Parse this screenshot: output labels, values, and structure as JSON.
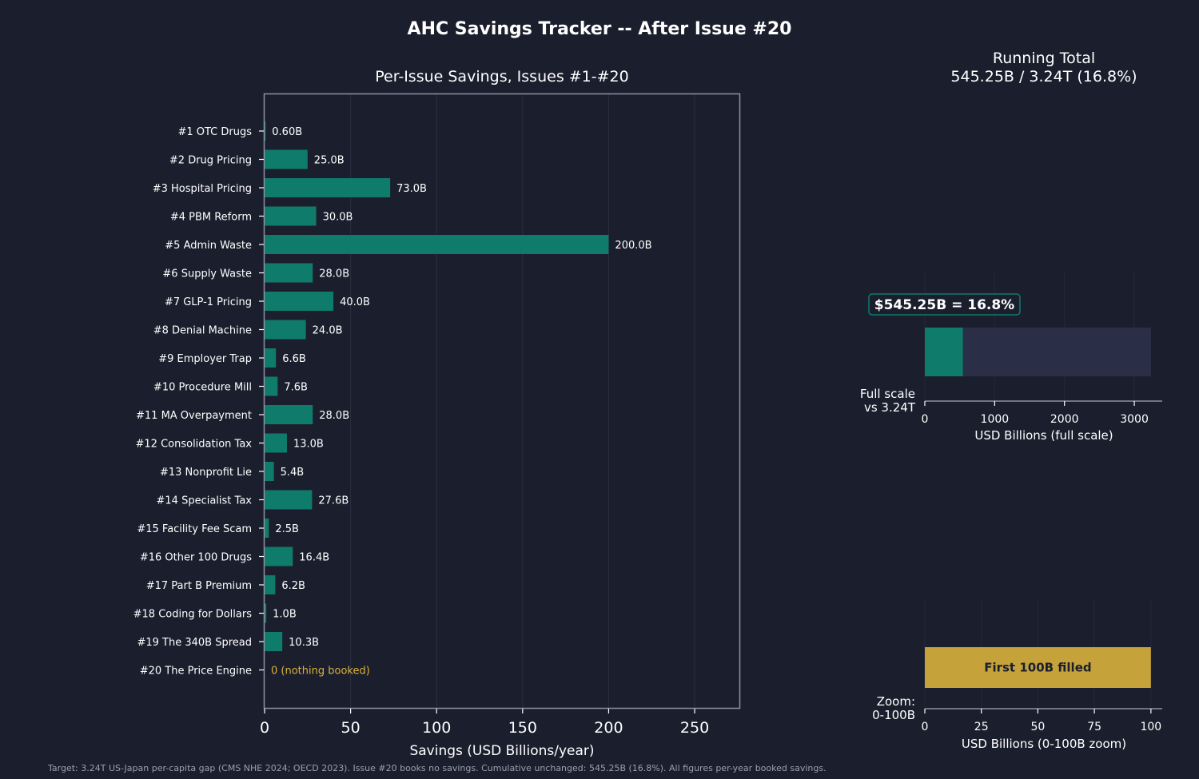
{
  "page": {
    "title": "AHC Savings Tracker -- After Issue #20",
    "footnote": "Target: 3.24T US-Japan per-capita gap (CMS NHE 2024; OECD 2023). Issue #20 books no savings. Cumulative unchanged: 545.25B (16.8%). All figures per-year booked savings."
  },
  "colors": {
    "background": "#1b1f2d",
    "bar": "#0f7b6a",
    "track": "#2a2e46",
    "gold": "#c5a23a",
    "zero_label": "#d9b13b"
  },
  "chart_data": [
    {
      "type": "bar",
      "orientation": "horizontal",
      "title": "Per-Issue Savings, Issues #1-#20",
      "xlabel": "Savings (USD Billions/year)",
      "xlim": [
        0,
        276
      ],
      "xticks": [
        0,
        50,
        100,
        150,
        200,
        250
      ],
      "categories": [
        "#1  OTC Drugs",
        "#2  Drug Pricing",
        "#3  Hospital Pricing",
        "#4  PBM Reform",
        "#5  Admin Waste",
        "#6  Supply Waste",
        "#7  GLP-1 Pricing",
        "#8  Denial Machine",
        "#9  Employer Trap",
        "#10  Procedure Mill",
        "#11  MA Overpayment",
        "#12  Consolidation Tax",
        "#13  Nonprofit Lie",
        "#14  Specialist Tax",
        "#15  Facility Fee Scam",
        "#16  Other 100 Drugs",
        "#17  Part B Premium",
        "#18  Coding for Dollars",
        "#19  The 340B Spread",
        "#20  The Price Engine"
      ],
      "values": [
        0.6,
        25.0,
        73.0,
        30.0,
        200.0,
        28.0,
        40.0,
        24.0,
        6.6,
        7.6,
        28.0,
        13.0,
        5.4,
        27.6,
        2.5,
        16.4,
        6.2,
        1.0,
        10.3,
        0
      ],
      "value_labels": [
        "0.60B",
        "25.0B",
        "73.0B",
        "30.0B",
        "200.0B",
        "28.0B",
        "40.0B",
        "24.0B",
        "6.6B",
        "7.6B",
        "28.0B",
        "13.0B",
        "5.4B",
        "27.6B",
        "2.5B",
        "16.4B",
        "6.2B",
        "1.0B",
        "10.3B",
        "0 (nothing booked)"
      ]
    },
    {
      "type": "bar",
      "orientation": "horizontal",
      "title": "Running Total",
      "subtitle": "545.25B / 3.24T (16.8%)",
      "row_label": [
        "Full scale",
        "vs 3.24T"
      ],
      "xlabel": "USD Billions (full scale)",
      "xlim": [
        0,
        3400
      ],
      "xticks": [
        0,
        1000,
        2000,
        3000
      ],
      "target": 3240,
      "value": 545.25,
      "badge": "$545.25B = 16.8%"
    },
    {
      "type": "bar",
      "orientation": "horizontal",
      "row_label": [
        "Zoom:",
        "0-100B"
      ],
      "xlabel": "USD Billions (0-100B zoom)",
      "xlim": [
        0,
        105
      ],
      "xticks": [
        0,
        25,
        50,
        75,
        100
      ],
      "value": 100,
      "bar_label": "First 100B filled"
    }
  ]
}
